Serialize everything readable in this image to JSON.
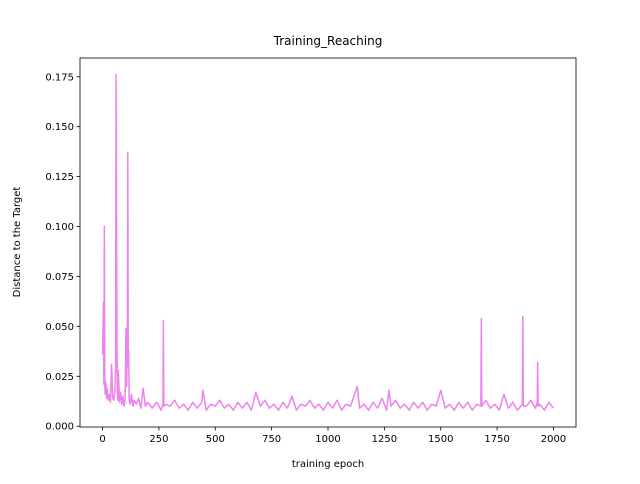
{
  "chart_data": {
    "type": "line",
    "title": "Training_Reaching",
    "x_label": "training epoch",
    "y_label": "Distance to the Target",
    "x": [
      0,
      2,
      4,
      6,
      8,
      10,
      12,
      15,
      18,
      20,
      25,
      30,
      35,
      40,
      45,
      50,
      55,
      58,
      60,
      62,
      64,
      66,
      68,
      70,
      75,
      80,
      85,
      90,
      95,
      100,
      104,
      107,
      110,
      112,
      114,
      116,
      118,
      120,
      124,
      128,
      135,
      140,
      150,
      160,
      170,
      180,
      190,
      200,
      220,
      240,
      260,
      268,
      270,
      272,
      280,
      300,
      320,
      340,
      360,
      380,
      400,
      420,
      440,
      445,
      460,
      480,
      500,
      520,
      540,
      560,
      580,
      600,
      620,
      640,
      660,
      680,
      700,
      720,
      740,
      760,
      780,
      800,
      820,
      840,
      860,
      880,
      900,
      920,
      940,
      960,
      980,
      1000,
      1020,
      1040,
      1060,
      1080,
      1100,
      1130,
      1140,
      1160,
      1180,
      1200,
      1220,
      1240,
      1260,
      1270,
      1280,
      1300,
      1320,
      1340,
      1360,
      1380,
      1400,
      1420,
      1440,
      1460,
      1480,
      1500,
      1520,
      1540,
      1560,
      1580,
      1600,
      1620,
      1640,
      1660,
      1678,
      1680,
      1682,
      1700,
      1720,
      1740,
      1760,
      1780,
      1800,
      1820,
      1840,
      1862,
      1864,
      1866,
      1880,
      1900,
      1920,
      1928,
      1930,
      1932,
      1940,
      1960,
      1980,
      2000
    ],
    "series": [
      {
        "color": "#ee82ee",
        "values": [
          0.036,
          0.049,
          0.062,
          0.021,
          0.1,
          0.02,
          0.016,
          0.022,
          0.014,
          0.019,
          0.013,
          0.016,
          0.012,
          0.031,
          0.014,
          0.013,
          0.018,
          0.03,
          0.176,
          0.12,
          0.04,
          0.015,
          0.013,
          0.028,
          0.012,
          0.017,
          0.011,
          0.015,
          0.01,
          0.013,
          0.049,
          0.02,
          0.045,
          0.137,
          0.03,
          0.038,
          0.014,
          0.012,
          0.011,
          0.016,
          0.01,
          0.013,
          0.011,
          0.014,
          0.009,
          0.019,
          0.01,
          0.012,
          0.009,
          0.012,
          0.008,
          0.011,
          0.053,
          0.01,
          0.011,
          0.01,
          0.013,
          0.009,
          0.011,
          0.008,
          0.012,
          0.009,
          0.012,
          0.018,
          0.008,
          0.011,
          0.01,
          0.013,
          0.009,
          0.011,
          0.008,
          0.012,
          0.009,
          0.012,
          0.008,
          0.017,
          0.01,
          0.013,
          0.009,
          0.011,
          0.008,
          0.012,
          0.009,
          0.015,
          0.008,
          0.011,
          0.01,
          0.013,
          0.009,
          0.011,
          0.008,
          0.012,
          0.009,
          0.013,
          0.008,
          0.011,
          0.01,
          0.02,
          0.009,
          0.011,
          0.008,
          0.012,
          0.009,
          0.014,
          0.008,
          0.018,
          0.01,
          0.013,
          0.009,
          0.011,
          0.008,
          0.012,
          0.009,
          0.012,
          0.008,
          0.011,
          0.01,
          0.018,
          0.009,
          0.011,
          0.008,
          0.012,
          0.009,
          0.012,
          0.008,
          0.011,
          0.01,
          0.054,
          0.01,
          0.013,
          0.009,
          0.011,
          0.008,
          0.016,
          0.009,
          0.012,
          0.008,
          0.011,
          0.055,
          0.01,
          0.01,
          0.013,
          0.009,
          0.012,
          0.032,
          0.01,
          0.011,
          0.008,
          0.012,
          0.009
        ]
      }
    ],
    "xlim": [
      -100,
      2100
    ],
    "ylim": [
      -0.0004,
      0.1844
    ],
    "xticks": [
      0,
      250,
      500,
      750,
      1000,
      1250,
      1500,
      1750,
      2000
    ],
    "yticks": [
      {
        "value": 0,
        "label": "0.000"
      },
      0.025,
      {
        "value": 0.05,
        "label": "0.050"
      },
      0.075,
      {
        "value": 0.1,
        "label": "0.100"
      },
      0.125,
      {
        "value": 0.15,
        "label": "0.150"
      },
      0.175
    ]
  }
}
